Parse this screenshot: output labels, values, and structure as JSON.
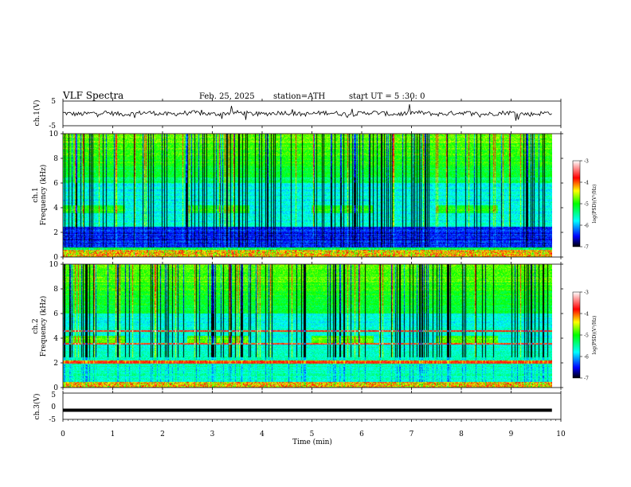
{
  "header": {
    "title": "VLF  Spectra",
    "date": "Feb. 25, 2025",
    "station": "station=ATH",
    "start": "start  UT  =   5  :30: 0"
  },
  "chart_data": [
    {
      "type": "line",
      "ylabel": "ch.1(V)",
      "ylim": [
        -5,
        5
      ],
      "ytick_labels": [
        "5",
        "-5"
      ],
      "x_range_min": [
        0,
        10
      ],
      "baseline_v": 0.0,
      "description_visible": "noisy waveform near 0 V with occasional spikes"
    },
    {
      "type": "heatmap",
      "ylabel_channel": "ch.1",
      "ylabel": "Frequency  (kHz)",
      "ylim": [
        0,
        10
      ],
      "ytick_labels": [
        "0",
        "2",
        "4",
        "6",
        "8",
        "10"
      ],
      "x_range_min": [
        0,
        9.82
      ],
      "colorbar": {
        "label": "log(PSD)(V²/Hz)",
        "range": [
          -7,
          -3
        ],
        "tick_labels": [
          "-3",
          "-4",
          "-5",
          "-6",
          "-7"
        ]
      }
    },
    {
      "type": "heatmap",
      "ylabel_channel": "ch.2",
      "ylabel": "Frequency  (kHz)",
      "ylim": [
        0,
        10
      ],
      "ytick_labels": [
        "0",
        "2",
        "4",
        "6",
        "8",
        "10"
      ],
      "x_range_min": [
        0,
        9.82
      ],
      "colorbar": {
        "label": "log(PSD)(V²/Hz)",
        "range": [
          -7,
          -3
        ],
        "tick_labels": [
          "-3",
          "-4",
          "-5",
          "-6",
          "-7"
        ]
      }
    },
    {
      "type": "line",
      "ylabel": "ch.3(V)",
      "ylim": [
        -5,
        5
      ],
      "ytick_labels": [
        "5",
        "0",
        "-5"
      ],
      "x_range_min": [
        0,
        9.82
      ],
      "baseline_v": -1.5
    }
  ],
  "xaxis": {
    "label": "Time  (min)",
    "range": [
      0,
      10
    ],
    "tick_labels": [
      "0",
      "1",
      "2",
      "3",
      "4",
      "5",
      "6",
      "7",
      "8",
      "9",
      "10"
    ]
  }
}
